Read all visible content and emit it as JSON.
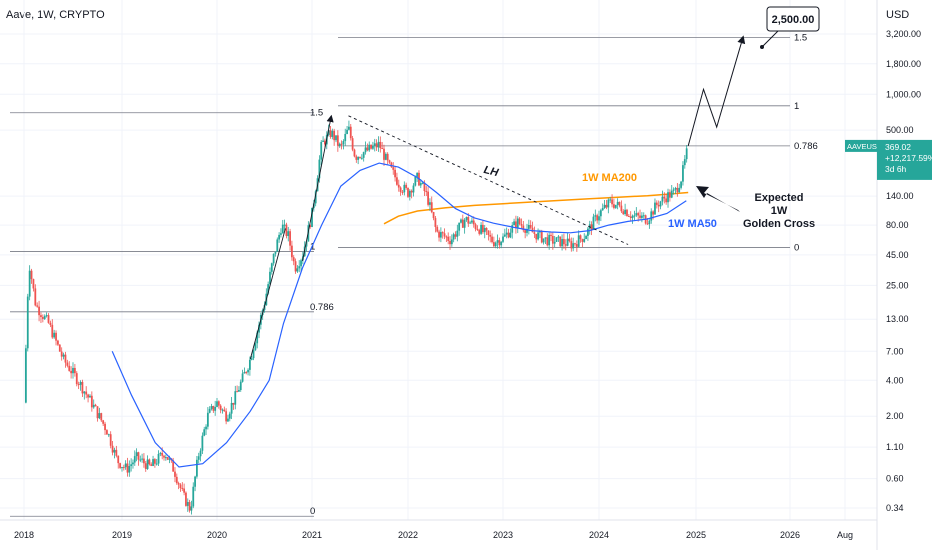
{
  "header": {
    "symbol_line": "Aave, 1W, CRYPTO",
    "currency": "USD"
  },
  "colors": {
    "up": "#26a69a",
    "down": "#ef5350",
    "ma50": "#2962ff",
    "ma200": "#ff9800",
    "grid": "#f0f3fa",
    "fib": "#787b86",
    "price_badge": "#26a69a"
  },
  "price_badge": {
    "symbol": "AAVEUSD",
    "price": "369.02",
    "change": "+12,217.59%",
    "countdown": "3d 6h"
  },
  "chart_data": {
    "type": "candlestick",
    "x_ticks": [
      "2018",
      "2019",
      "2020",
      "2021",
      "2022",
      "2023",
      "2024",
      "2025",
      "2026",
      "Aug"
    ],
    "y_ticks": [
      "3,200.00",
      "1,800.00",
      "1,000.00",
      "500.00",
      "140.00",
      "80.00",
      "45.00",
      "25.00",
      "13.00",
      "7.00",
      "4.00",
      "2.00",
      "1.10",
      "0.60",
      "0.34"
    ],
    "y_scale": "log",
    "fib_left": [
      {
        "label": "1.5",
        "price": 700
      },
      {
        "label": "1",
        "price": 48
      },
      {
        "label": "0.786",
        "price": 15
      },
      {
        "label": "0",
        "price": 0.29
      }
    ],
    "fib_right": [
      {
        "label": "1.5",
        "price": 3000
      },
      {
        "label": "1",
        "price": 800
      },
      {
        "label": "0.786",
        "price": 369
      },
      {
        "label": "0",
        "price": 52
      }
    ],
    "target_label": "2,500.00",
    "annotations": {
      "ma200": "1W MA200",
      "ma50": "1W MA50",
      "trendline": "LH",
      "callout_line1": "Expected",
      "callout_line2": "1W",
      "callout_line3": "Golden Cross"
    },
    "price_path": [
      [
        2018.0,
        2.6
      ],
      [
        2018.05,
        40
      ],
      [
        2018.12,
        17
      ],
      [
        2018.25,
        12
      ],
      [
        2018.4,
        6
      ],
      [
        2018.55,
        4
      ],
      [
        2018.7,
        2.5
      ],
      [
        2018.85,
        1.5
      ],
      [
        2018.95,
        0.85
      ],
      [
        2019.05,
        0.72
      ],
      [
        2019.15,
        0.9
      ],
      [
        2019.3,
        0.75
      ],
      [
        2019.45,
        1.0
      ],
      [
        2019.55,
        0.7
      ],
      [
        2019.65,
        0.42
      ],
      [
        2019.72,
        0.33
      ],
      [
        2019.8,
        0.9
      ],
      [
        2019.9,
        2.0
      ],
      [
        2020.0,
        2.6
      ],
      [
        2020.1,
        2.0
      ],
      [
        2020.2,
        3.0
      ],
      [
        2020.35,
        6.0
      ],
      [
        2020.5,
        18
      ],
      [
        2020.6,
        45
      ],
      [
        2020.68,
        80
      ],
      [
        2020.75,
        65
      ],
      [
        2020.82,
        35
      ],
      [
        2020.9,
        45
      ],
      [
        2021.0,
        100
      ],
      [
        2021.1,
        380
      ],
      [
        2021.2,
        480
      ],
      [
        2021.3,
        350
      ],
      [
        2021.38,
        520
      ],
      [
        2021.45,
        300
      ],
      [
        2021.55,
        330
      ],
      [
        2021.7,
        380
      ],
      [
        2021.8,
        250
      ],
      [
        2021.92,
        170
      ],
      [
        2022.0,
        150
      ],
      [
        2022.1,
        200
      ],
      [
        2022.2,
        140
      ],
      [
        2022.3,
        70
      ],
      [
        2022.45,
        60
      ],
      [
        2022.6,
        90
      ],
      [
        2022.75,
        75
      ],
      [
        2022.9,
        58
      ],
      [
        2023.0,
        62
      ],
      [
        2023.15,
        85
      ],
      [
        2023.3,
        70
      ],
      [
        2023.45,
        60
      ],
      [
        2023.6,
        58
      ],
      [
        2023.72,
        55
      ],
      [
        2023.85,
        65
      ],
      [
        2024.0,
        100
      ],
      [
        2024.12,
        125
      ],
      [
        2024.25,
        110
      ],
      [
        2024.35,
        95
      ],
      [
        2024.5,
        90
      ],
      [
        2024.6,
        120
      ],
      [
        2024.7,
        140
      ],
      [
        2024.78,
        150
      ],
      [
        2024.85,
        200
      ],
      [
        2024.92,
        369
      ]
    ],
    "ma50_path": [
      [
        2018.9,
        7
      ],
      [
        2019.1,
        3
      ],
      [
        2019.35,
        1.2
      ],
      [
        2019.6,
        0.75
      ],
      [
        2019.85,
        0.8
      ],
      [
        2020.1,
        1.2
      ],
      [
        2020.35,
        2.2
      ],
      [
        2020.55,
        4
      ],
      [
        2020.7,
        12
      ],
      [
        2020.9,
        35
      ],
      [
        2021.1,
        80
      ],
      [
        2021.3,
        170
      ],
      [
        2021.5,
        230
      ],
      [
        2021.7,
        265
      ],
      [
        2021.9,
        245
      ],
      [
        2022.1,
        200
      ],
      [
        2022.3,
        150
      ],
      [
        2022.5,
        110
      ],
      [
        2022.7,
        92
      ],
      [
        2022.9,
        83
      ],
      [
        2023.1,
        77
      ],
      [
        2023.3,
        72
      ],
      [
        2023.5,
        70
      ],
      [
        2023.7,
        69
      ],
      [
        2023.9,
        72
      ],
      [
        2024.1,
        80
      ],
      [
        2024.3,
        86
      ],
      [
        2024.5,
        90
      ],
      [
        2024.7,
        100
      ],
      [
        2024.9,
        128
      ]
    ],
    "ma200_path": [
      [
        2021.75,
        82
      ],
      [
        2021.9,
        95
      ],
      [
        2022.1,
        105
      ],
      [
        2022.4,
        112
      ],
      [
        2022.7,
        117
      ],
      [
        2023.0,
        121
      ],
      [
        2023.3,
        125
      ],
      [
        2023.6,
        129
      ],
      [
        2023.9,
        133
      ],
      [
        2024.2,
        137
      ],
      [
        2024.5,
        141
      ],
      [
        2024.75,
        146
      ],
      [
        2024.92,
        150
      ]
    ],
    "projection": [
      [
        2024.92,
        369
      ],
      [
        2025.08,
        1100
      ],
      [
        2025.22,
        530
      ],
      [
        2025.5,
        3000
      ]
    ],
    "lh_trendline": [
      [
        2021.38,
        660
      ],
      [
        2024.3,
        55
      ]
    ]
  }
}
